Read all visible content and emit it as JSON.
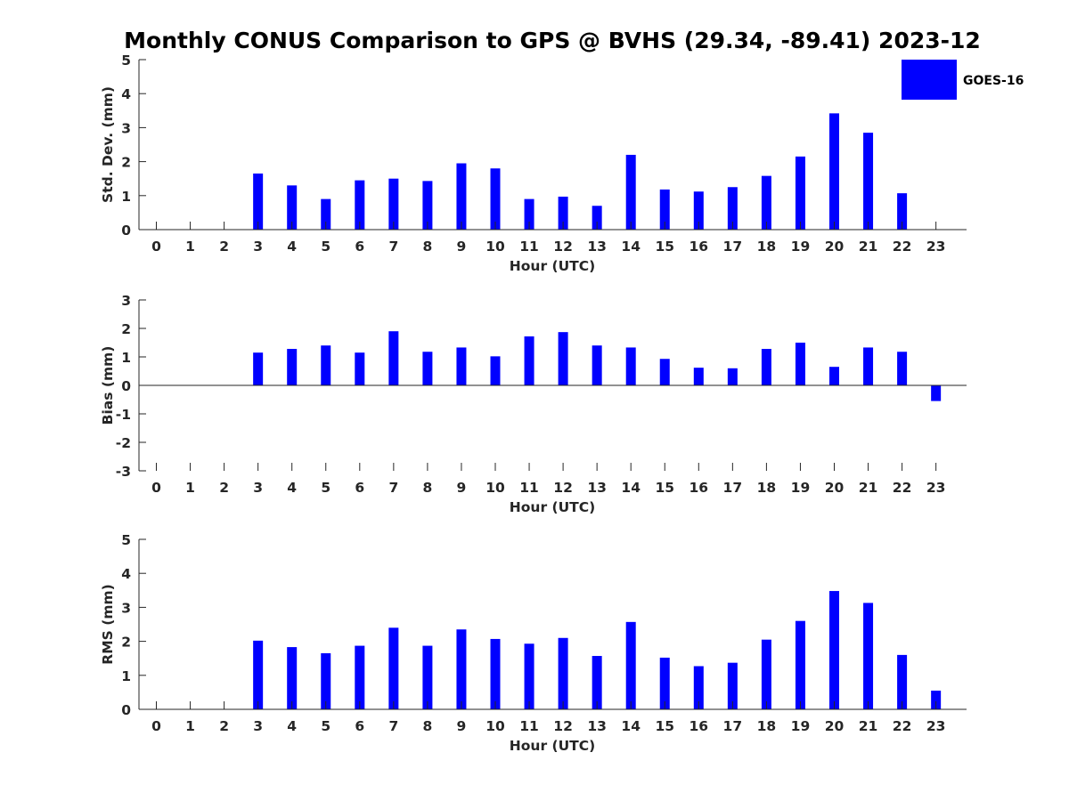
{
  "figure": {
    "title": "Monthly CONUS Comparison to GPS @ BVHS (29.34, -89.41) 2023-12",
    "legend_label": "GOES-16",
    "bar_color": "#0000ff"
  },
  "chart_data": [
    {
      "type": "bar",
      "title": "",
      "xlabel": "Hour (UTC)",
      "ylabel": "Std. Dev. (mm)",
      "categories": [
        "0",
        "1",
        "2",
        "3",
        "4",
        "5",
        "6",
        "7",
        "8",
        "9",
        "10",
        "11",
        "12",
        "13",
        "14",
        "15",
        "16",
        "17",
        "18",
        "19",
        "20",
        "21",
        "22",
        "23"
      ],
      "ylim": [
        0,
        5
      ],
      "yticks": [
        0,
        1,
        2,
        3,
        4,
        5
      ],
      "series": [
        {
          "name": "GOES-16",
          "values": [
            null,
            null,
            null,
            1.65,
            1.3,
            0.9,
            1.45,
            1.5,
            1.43,
            1.95,
            1.8,
            0.9,
            0.97,
            0.7,
            2.2,
            1.18,
            1.12,
            1.25,
            1.58,
            2.15,
            3.42,
            2.85,
            1.07,
            null
          ]
        }
      ]
    },
    {
      "type": "bar",
      "title": "",
      "xlabel": "Hour (UTC)",
      "ylabel": "Bias (mm)",
      "categories": [
        "0",
        "1",
        "2",
        "3",
        "4",
        "5",
        "6",
        "7",
        "8",
        "9",
        "10",
        "11",
        "12",
        "13",
        "14",
        "15",
        "16",
        "17",
        "18",
        "19",
        "20",
        "21",
        "22",
        "23"
      ],
      "ylim": [
        -3,
        3
      ],
      "yticks": [
        -3,
        -2,
        -1,
        0,
        1,
        2,
        3
      ],
      "series": [
        {
          "name": "GOES-16",
          "values": [
            null,
            null,
            null,
            1.15,
            1.28,
            1.4,
            1.15,
            1.9,
            1.18,
            1.33,
            1.02,
            1.72,
            1.87,
            1.4,
            1.33,
            0.93,
            0.62,
            0.6,
            1.28,
            1.5,
            0.65,
            1.33,
            1.18,
            -0.55
          ]
        }
      ]
    },
    {
      "type": "bar",
      "title": "",
      "xlabel": "Hour (UTC)",
      "ylabel": "RMS (mm)",
      "categories": [
        "0",
        "1",
        "2",
        "3",
        "4",
        "5",
        "6",
        "7",
        "8",
        "9",
        "10",
        "11",
        "12",
        "13",
        "14",
        "15",
        "16",
        "17",
        "18",
        "19",
        "20",
        "21",
        "22",
        "23"
      ],
      "ylim": [
        0,
        5
      ],
      "yticks": [
        0,
        1,
        2,
        3,
        4,
        5
      ],
      "series": [
        {
          "name": "GOES-16",
          "values": [
            null,
            null,
            null,
            2.02,
            1.83,
            1.65,
            1.87,
            2.4,
            1.87,
            2.35,
            2.07,
            1.93,
            2.1,
            1.57,
            2.57,
            1.52,
            1.27,
            1.37,
            2.05,
            2.6,
            3.48,
            3.13,
            1.6,
            0.55
          ]
        }
      ]
    }
  ]
}
